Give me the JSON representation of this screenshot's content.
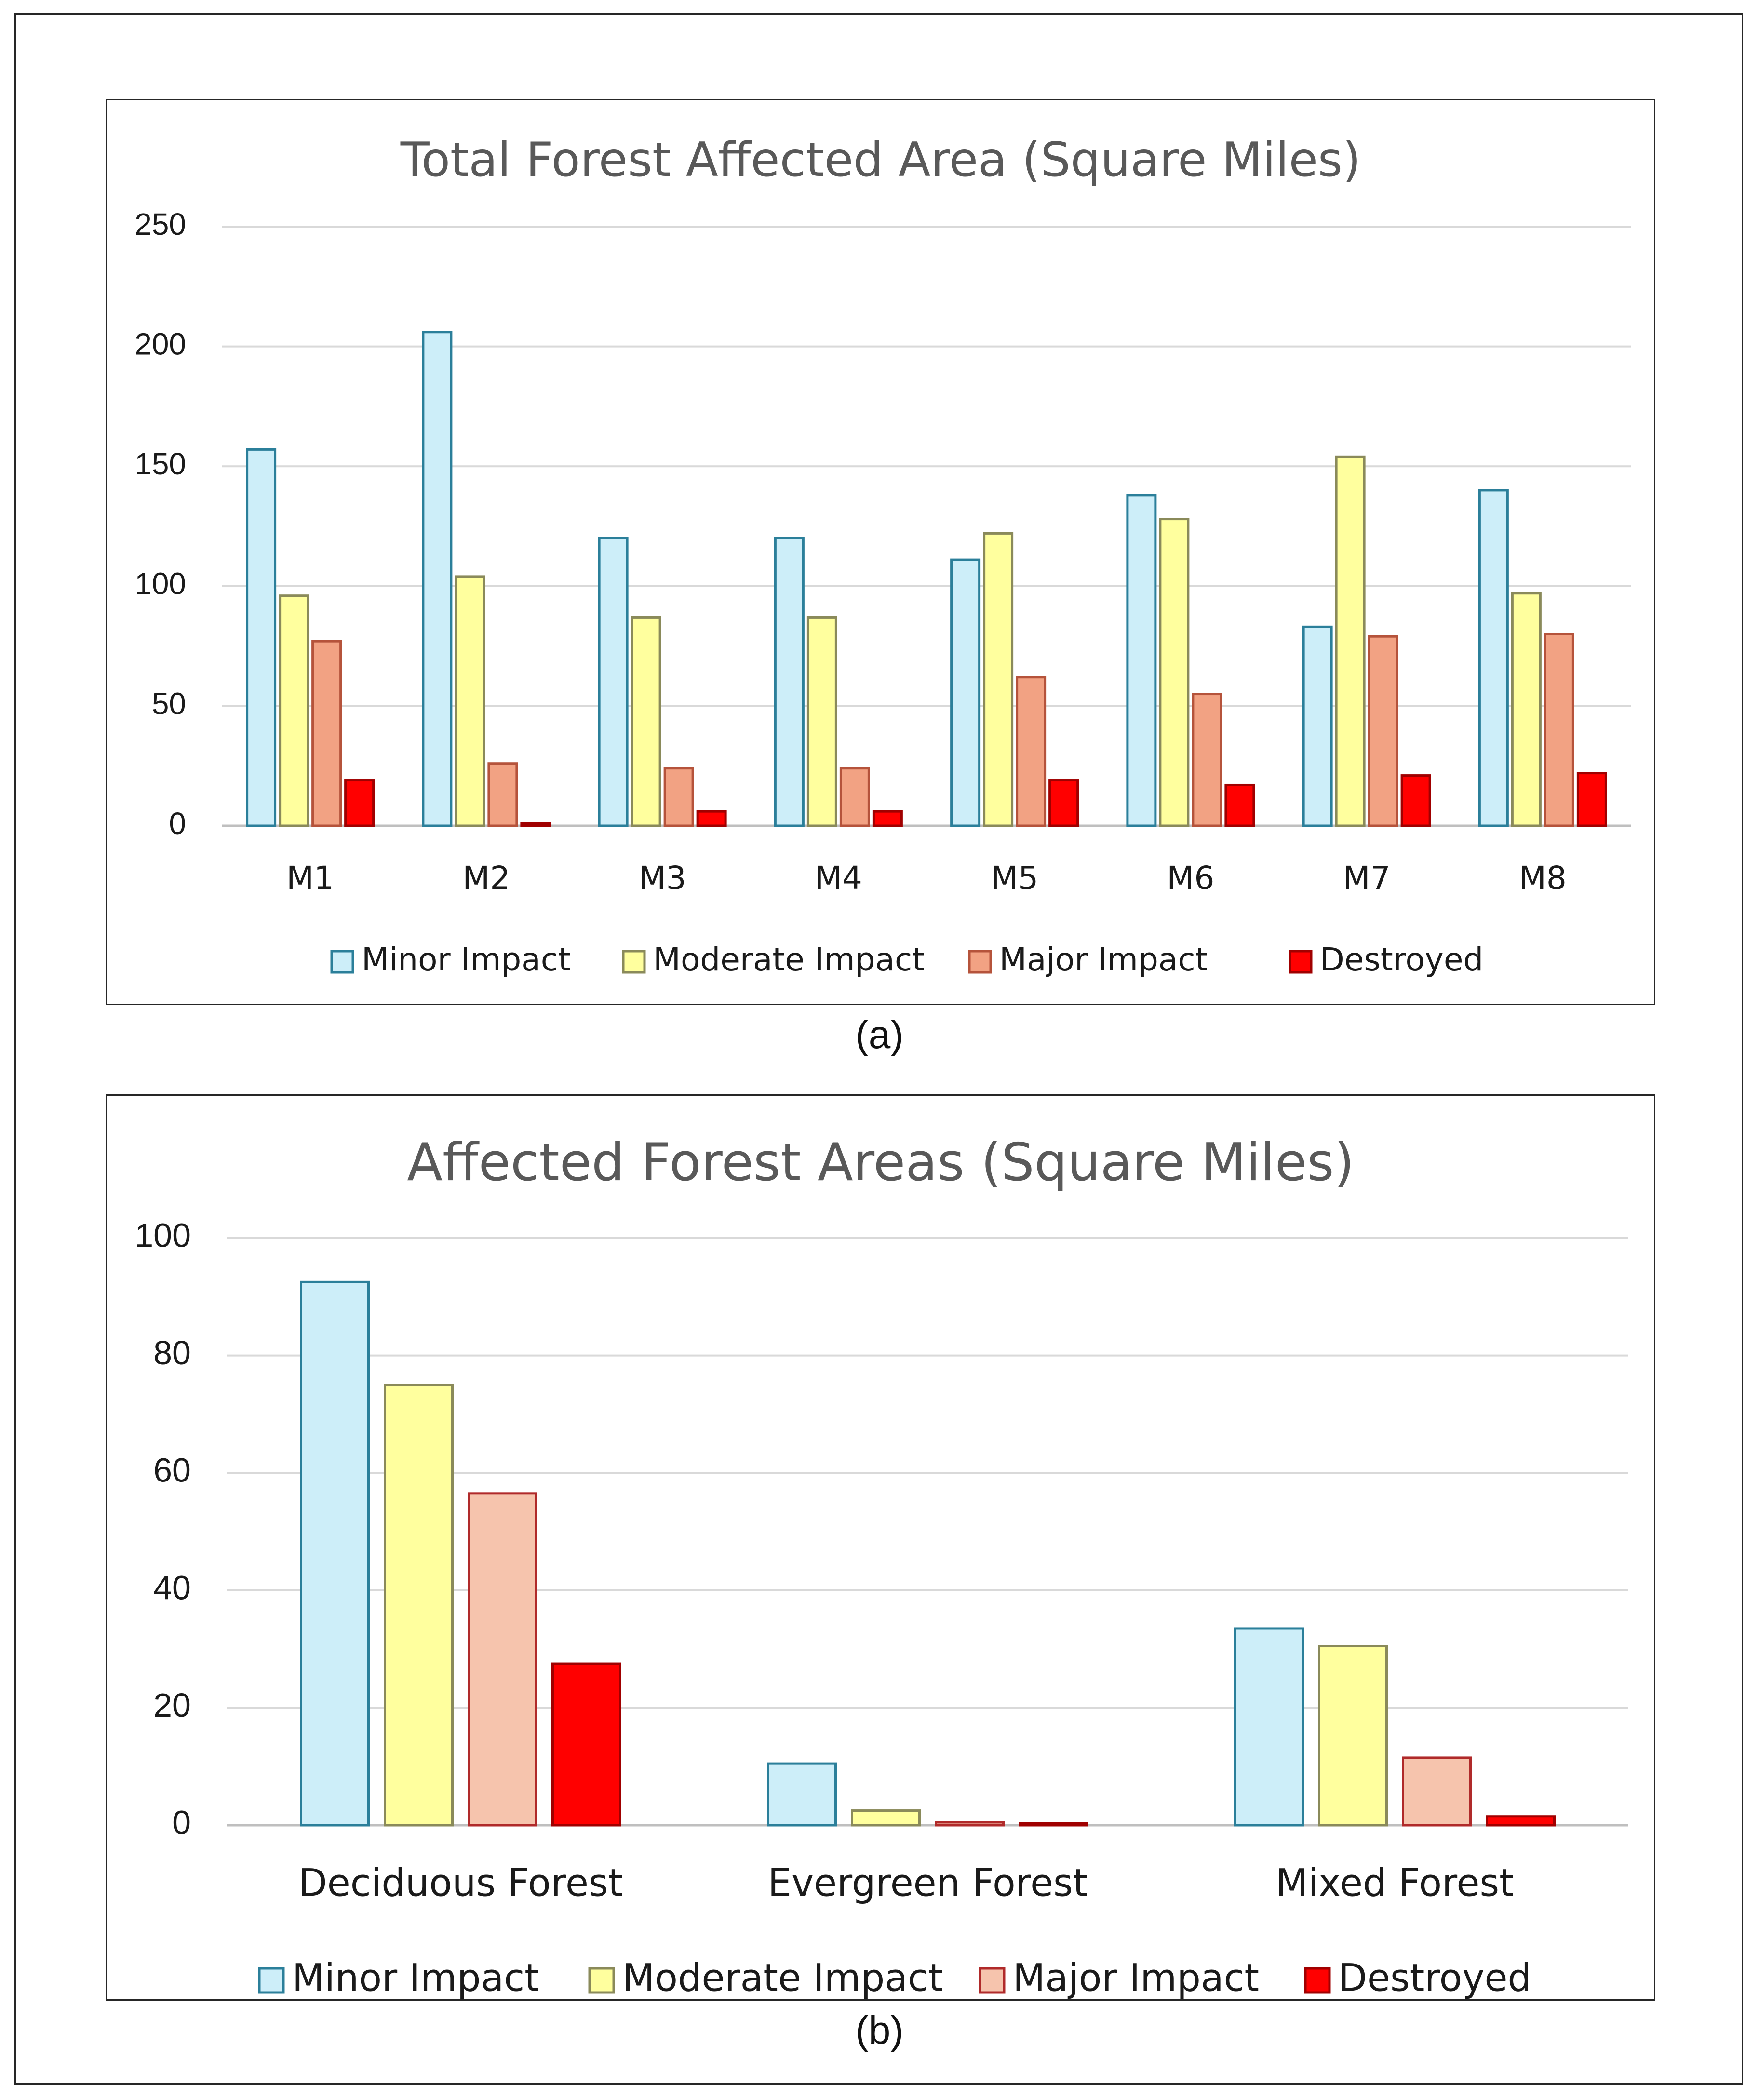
{
  "chart_data": [
    {
      "id": "a",
      "type": "bar",
      "title": "Total Forest Affected Area (Square Miles)",
      "categories": [
        "M1",
        "M2",
        "M3",
        "M4",
        "M5",
        "M6",
        "M7",
        "M8"
      ],
      "series": [
        {
          "name": "Minor Impact",
          "values": [
            157,
            206,
            120,
            120,
            111,
            138,
            83,
            140
          ],
          "fill": "#cdeef9",
          "stroke": "#2b7f9a"
        },
        {
          "name": "Moderate Impact",
          "values": [
            96,
            104,
            87,
            87,
            122,
            128,
            154,
            97
          ],
          "fill": "#ffff9e",
          "stroke": "#8a8a5a"
        },
        {
          "name": "Major Impact",
          "values": [
            77,
            26,
            24,
            24,
            62,
            55,
            79,
            80
          ],
          "fill": "#f2a283",
          "stroke": "#b5533b"
        },
        {
          "name": "Destroyed",
          "values": [
            19,
            1,
            6,
            6,
            19,
            17,
            21,
            22
          ],
          "fill": "#ff0000",
          "stroke": "#a00000"
        }
      ],
      "yticks": [
        0,
        50,
        100,
        150,
        200,
        250
      ],
      "ylim": [
        0,
        250
      ],
      "grid": true,
      "legend": "bottom"
    },
    {
      "id": "b",
      "type": "bar",
      "title": "Affected Forest Areas (Square Miles)",
      "categories": [
        "Deciduous Forest",
        "Evergreen Forest",
        "Mixed Forest"
      ],
      "series": [
        {
          "name": "Minor Impact",
          "values": [
            92.5,
            10.5,
            33.5
          ],
          "fill": "#cdeef9",
          "stroke": "#2b7f9a"
        },
        {
          "name": "Moderate Impact",
          "values": [
            75,
            2.5,
            30.5
          ],
          "fill": "#ffff9e",
          "stroke": "#8a8a5a"
        },
        {
          "name": "Major Impact",
          "values": [
            56.5,
            0.5,
            11.5
          ],
          "fill": "#f6c4ad",
          "stroke": "#b02a2a"
        },
        {
          "name": "Destroyed",
          "values": [
            27.5,
            0.3,
            1.5
          ],
          "fill": "#ff0000",
          "stroke": "#a00000"
        }
      ],
      "yticks": [
        0,
        20,
        40,
        60,
        80,
        100
      ],
      "ylim": [
        0,
        100
      ],
      "grid": true,
      "legend": "bottom"
    }
  ],
  "captions": {
    "a": "(a)",
    "b": "(b)"
  }
}
